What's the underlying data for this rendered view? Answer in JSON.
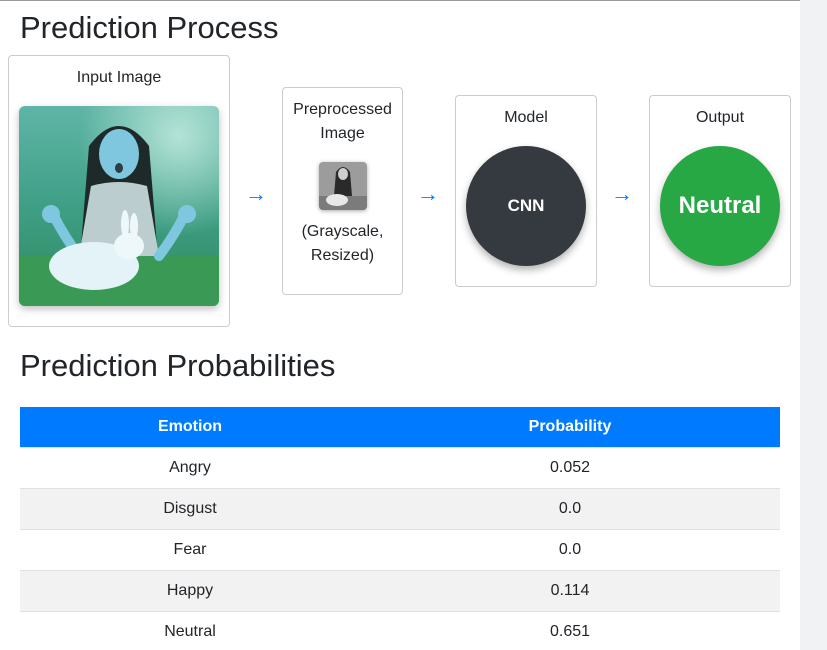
{
  "process": {
    "title": "Prediction Process",
    "input_label": "Input Image",
    "preprocessed_label": "Preprocessed Image",
    "preprocessed_sub": "(Grayscale, Resized)",
    "model_label": "Model",
    "model_name": "CNN",
    "output_label": "Output",
    "output_value": "Neutral",
    "arrow_glyph": "→",
    "colors": {
      "model": "#343a40",
      "output": "#28a745",
      "arrow": "#007bff"
    }
  },
  "probabilities": {
    "title": "Prediction Probabilities",
    "headers": [
      "Emotion",
      "Probability"
    ],
    "rows": [
      {
        "emotion": "Angry",
        "probability": "0.052"
      },
      {
        "emotion": "Disgust",
        "probability": "0.0"
      },
      {
        "emotion": "Fear",
        "probability": "0.0"
      },
      {
        "emotion": "Happy",
        "probability": "0.114"
      },
      {
        "emotion": "Neutral",
        "probability": "0.651"
      }
    ],
    "header_color": "#007bff"
  }
}
